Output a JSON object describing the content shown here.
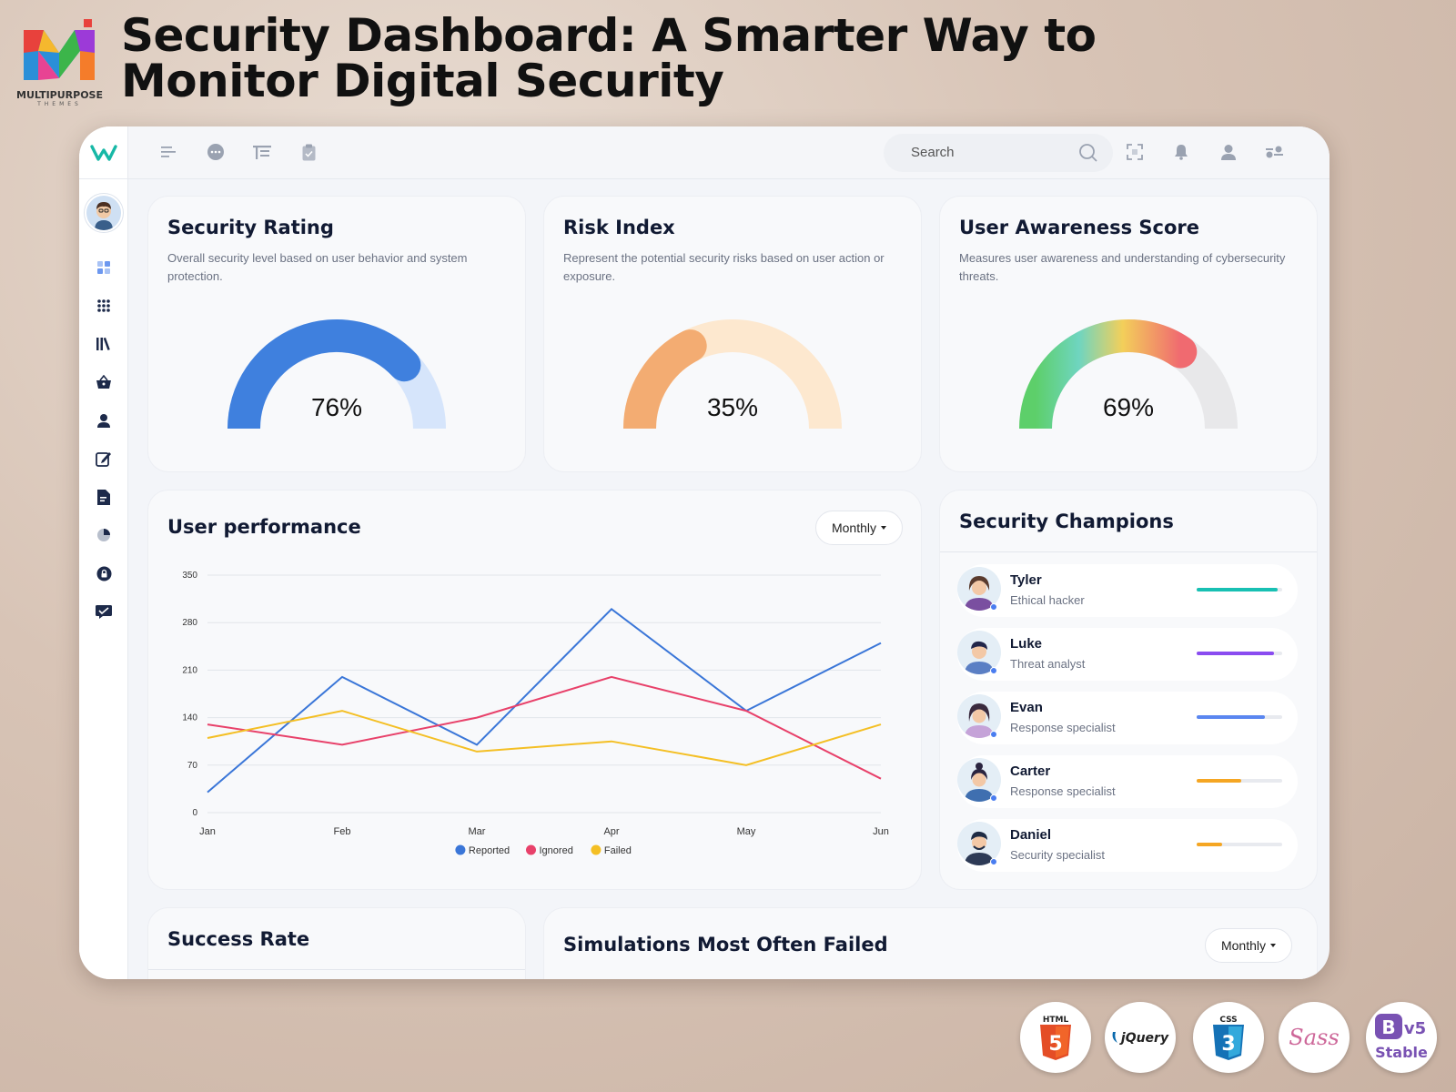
{
  "headline": "Security Dashboard: A Smarter Way to Monitor Digital Security",
  "brand": {
    "name": "MULTIPURPOSE",
    "sub": "THEMES"
  },
  "topbar": {
    "search_placeholder": "Search"
  },
  "cards": {
    "security_rating": {
      "title": "Security Rating",
      "desc": "Overall security level based on user behavior and system protection.",
      "value_text": "76%",
      "value": 0.76
    },
    "risk_index": {
      "title": "Risk Index",
      "desc": "Represent the potential security risks based on user action or exposure.",
      "value_text": "35%",
      "value": 0.35
    },
    "user_awareness": {
      "title": "User Awareness Score",
      "desc": "Measures user awareness and understanding of cybersecurity threats.",
      "value_text": "69%",
      "value": 0.69
    }
  },
  "user_performance": {
    "title": "User performance",
    "period": "Monthly"
  },
  "champions": {
    "title": "Security Champions",
    "items": [
      {
        "name": "Tyler",
        "role": "Ethical hacker",
        "progress": 0.95,
        "color": "#18c0b3"
      },
      {
        "name": "Luke",
        "role": "Threat analyst",
        "progress": 0.9,
        "color": "#8a4cf0"
      },
      {
        "name": "Evan",
        "role": "Response specialist",
        "progress": 0.8,
        "color": "#5a86f0"
      },
      {
        "name": "Carter",
        "role": "Response specialist",
        "progress": 0.52,
        "color": "#f5a623"
      },
      {
        "name": "Daniel",
        "role": "Security specialist",
        "progress": 0.3,
        "color": "#f5a623"
      }
    ]
  },
  "success_rate": {
    "title": "Success Rate"
  },
  "simulations": {
    "title": "Simulations Most Often Failed",
    "period": "Monthly"
  },
  "tech_badges": {
    "html": "HTML",
    "jquery": "jQuery",
    "css": "CSS",
    "sass": "Sass",
    "bootstrap": "v5",
    "bootstrap_sub": "Stable"
  },
  "chart_data": {
    "type": "line",
    "categories": [
      "Jan",
      "Feb",
      "Mar",
      "Apr",
      "May",
      "Jun"
    ],
    "series": [
      {
        "name": "Reported",
        "values": [
          30,
          200,
          100,
          300,
          150,
          250
        ],
        "color": "#3a76d8"
      },
      {
        "name": "Ignored",
        "values": [
          130,
          100,
          140,
          200,
          150,
          50
        ],
        "color": "#e8416a"
      },
      {
        "name": "Failed",
        "values": [
          110,
          150,
          90,
          105,
          70,
          130
        ],
        "color": "#f4bf24"
      }
    ],
    "yticks": [
      0,
      70,
      140,
      210,
      280,
      350
    ],
    "ylim": [
      0,
      350
    ],
    "legend": "bottom",
    "grid": true
  }
}
